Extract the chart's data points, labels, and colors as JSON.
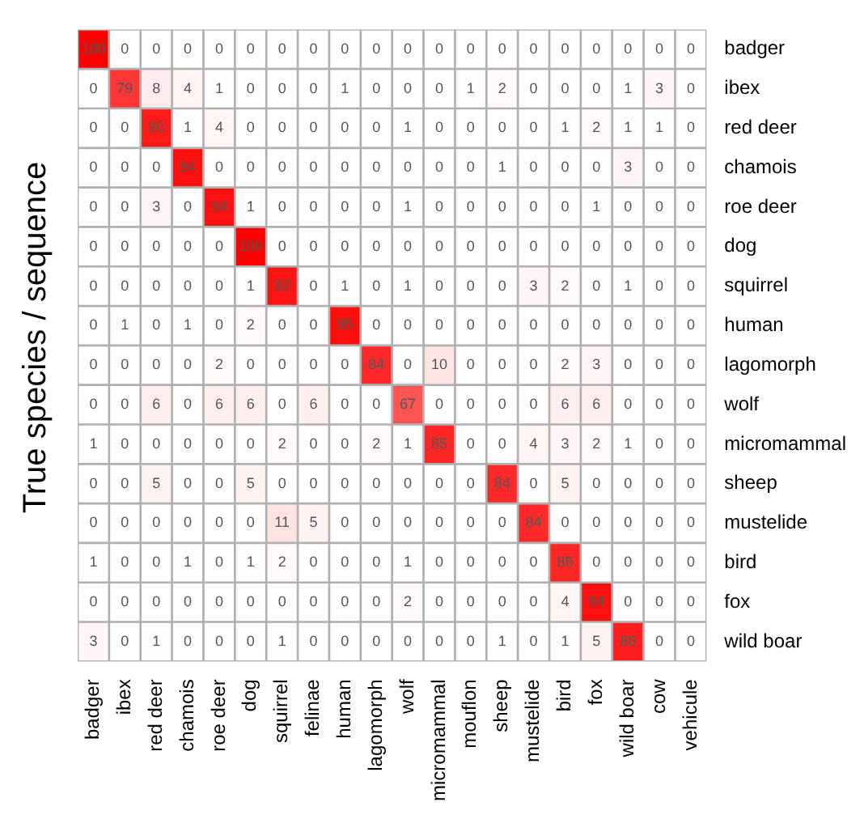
{
  "chart_data": {
    "type": "heatmap",
    "ylabel": "True species / sequence",
    "color": "#ff0000",
    "data_labels": true,
    "categories": [
      "badger",
      "ibex",
      "red deer",
      "chamois",
      "roe deer",
      "dog",
      "squirrel",
      "felinae",
      "human",
      "lagomorph",
      "wolf",
      "micromammal",
      "mouflon",
      "sheep",
      "mustelide",
      "bird",
      "fox",
      "wild boar",
      "cow",
      "vehicule"
    ],
    "y_categories": [
      "badger",
      "ibex",
      "red deer",
      "chamois",
      "roe deer",
      "dog",
      "squirrel",
      "human",
      "lagomorph",
      "wolf",
      "micromammal",
      "sheep",
      "mustelide",
      "bird",
      "fox",
      "wild boar"
    ],
    "cells": [
      [
        100,
        0,
        0,
        0,
        0,
        0,
        0,
        0,
        0,
        0,
        0,
        0,
        0,
        0,
        0,
        0,
        0,
        0,
        0,
        0
      ],
      [
        0,
        79,
        8,
        4,
        1,
        0,
        0,
        0,
        1,
        0,
        0,
        0,
        1,
        2,
        0,
        0,
        0,
        1,
        3,
        0
      ],
      [
        0,
        0,
        90,
        1,
        4,
        0,
        0,
        0,
        0,
        0,
        1,
        0,
        0,
        0,
        0,
        1,
        2,
        1,
        1,
        0
      ],
      [
        0,
        0,
        0,
        94,
        0,
        0,
        0,
        0,
        0,
        0,
        0,
        0,
        0,
        1,
        0,
        0,
        0,
        3,
        0,
        0
      ],
      [
        0,
        0,
        3,
        0,
        94,
        1,
        0,
        0,
        0,
        0,
        1,
        0,
        0,
        0,
        0,
        0,
        1,
        0,
        0,
        0
      ],
      [
        0,
        0,
        0,
        0,
        0,
        100,
        0,
        0,
        0,
        0,
        0,
        0,
        0,
        0,
        0,
        0,
        0,
        0,
        0,
        0
      ],
      [
        0,
        0,
        0,
        0,
        0,
        1,
        92,
        0,
        1,
        0,
        1,
        0,
        0,
        0,
        3,
        2,
        0,
        1,
        0,
        0
      ],
      [
        0,
        1,
        0,
        1,
        0,
        2,
        0,
        0,
        95,
        0,
        0,
        0,
        0,
        0,
        0,
        0,
        0,
        0,
        0,
        0
      ],
      [
        0,
        0,
        0,
        0,
        2,
        0,
        0,
        0,
        0,
        84,
        0,
        10,
        0,
        0,
        0,
        2,
        3,
        0,
        0,
        0
      ],
      [
        0,
        0,
        6,
        0,
        6,
        6,
        0,
        6,
        0,
        0,
        67,
        0,
        0,
        0,
        0,
        6,
        6,
        0,
        0,
        0
      ],
      [
        1,
        0,
        0,
        0,
        0,
        0,
        2,
        0,
        0,
        2,
        1,
        85,
        0,
        0,
        4,
        3,
        2,
        1,
        0,
        0
      ],
      [
        0,
        0,
        5,
        0,
        0,
        5,
        0,
        0,
        0,
        0,
        0,
        0,
        0,
        84,
        0,
        5,
        0,
        0,
        0,
        0
      ],
      [
        0,
        0,
        0,
        0,
        0,
        0,
        11,
        5,
        0,
        0,
        0,
        0,
        0,
        0,
        84,
        0,
        0,
        0,
        0,
        0
      ],
      [
        1,
        0,
        0,
        1,
        0,
        1,
        2,
        0,
        0,
        0,
        1,
        0,
        0,
        0,
        0,
        85,
        0,
        0,
        0,
        0
      ],
      [
        0,
        0,
        0,
        0,
        0,
        0,
        0,
        0,
        0,
        0,
        2,
        0,
        0,
        0,
        0,
        4,
        94,
        0,
        0,
        0
      ],
      [
        3,
        0,
        1,
        0,
        0,
        0,
        1,
        0,
        0,
        0,
        0,
        0,
        0,
        1,
        0,
        1,
        5,
        88,
        0,
        0
      ]
    ]
  }
}
